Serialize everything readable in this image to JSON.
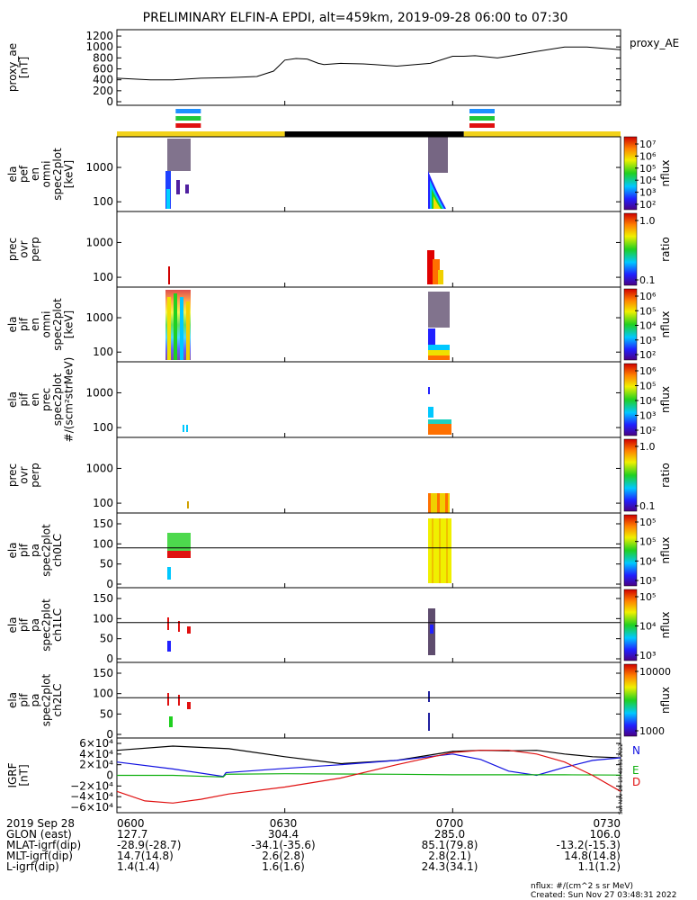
{
  "title": "PRELIMINARY ELFIN-A EPDI, alt=459km, 2019-09-28 06:00 to 07:30",
  "colors": {
    "yellow_bar": "#f2d21a",
    "black_bar": "#000000",
    "blue_bar": "#1e90ff",
    "green_bar": "#22c83a",
    "red_bar": "#e01010",
    "bfield_total": "#000000",
    "bfield_n": "#1010e0",
    "bfield_e": "#10b010",
    "bfield_d": "#e01010"
  },
  "chart_data": {
    "type": "line",
    "x_ticks": [
      "0600",
      "0630",
      "0700",
      "0730"
    ],
    "x_minutes": [
      0,
      30,
      60,
      90
    ],
    "science_zones": [
      {
        "start": 10.5,
        "end": 15.0,
        "color_row": [
          "blue",
          "green",
          "red"
        ]
      },
      {
        "start": 63.0,
        "end": 67.5,
        "color_row": [
          "blue",
          "green",
          "red"
        ]
      }
    ],
    "orbit_bar": [
      {
        "start": 0,
        "end": 30,
        "color": "yellow"
      },
      {
        "start": 30,
        "end": 62,
        "color": "black"
      },
      {
        "start": 62,
        "end": 90,
        "color": "yellow"
      }
    ],
    "panels": [
      {
        "label_lines": [
          "proxy_ae",
          "[nT]"
        ],
        "right_label": "proxy_AE",
        "yticks": [
          "1200",
          "1000",
          "800",
          "600",
          "400",
          "200",
          "0"
        ],
        "ylim": [
          0,
          1250
        ],
        "series": [
          {
            "name": "proxy_AE",
            "x": [
              0,
              4,
              6,
              10,
              15,
              20,
              25,
              28,
              30,
              32,
              34,
              36,
              37,
              40,
              44,
              46,
              50,
              56,
              60,
              62,
              64,
              66,
              68,
              70,
              75,
              80,
              84,
              90
            ],
            "y": [
              430,
              410,
              400,
              400,
              430,
              440,
              460,
              560,
              760,
              790,
              780,
              700,
              680,
              700,
              690,
              680,
              650,
              700,
              830,
              830,
              840,
              820,
              800,
              830,
              920,
              1000,
              1000,
              950
            ]
          }
        ]
      },
      {
        "label_lines": [
          "ela",
          "pef",
          "en",
          "omni",
          "spec2plot",
          "[keV]"
        ],
        "yticks": [
          "1000",
          "100"
        ],
        "colorbar": {
          "label": "nflux",
          "ticks": [
            "10⁷",
            "10⁶",
            "10⁵",
            "10⁴",
            "10³",
            "10²"
          ]
        }
      },
      {
        "label_lines": [
          "prec",
          "ovr",
          "perp"
        ],
        "yticks": [
          "1000",
          "100"
        ],
        "colorbar": {
          "label": "ratio",
          "ticks": [
            "1.0",
            "0.1"
          ]
        }
      },
      {
        "label_lines": [
          "ela",
          "pif",
          "en",
          "omni",
          "spec2plot",
          "[keV]"
        ],
        "yticks": [
          "1000",
          "100"
        ],
        "colorbar": {
          "label": "nflux",
          "ticks": [
            "10⁶",
            "10⁵",
            "10⁴",
            "10³",
            "10²"
          ]
        }
      },
      {
        "label_lines": [
          "ela",
          "pif",
          "en",
          "prec",
          "spec2plot",
          "#/(scm²strMeV)"
        ],
        "yticks": [
          "1000",
          "100"
        ],
        "colorbar": {
          "label": "nflux",
          "ticks": [
            "10⁶",
            "10⁵",
            "10⁴",
            "10³",
            "10²"
          ]
        }
      },
      {
        "label_lines": [
          "prec",
          "ovr",
          "perp"
        ],
        "yticks": [
          "1000",
          "100"
        ],
        "colorbar": {
          "label": "ratio",
          "ticks": [
            "1.0",
            "0.1"
          ]
        }
      },
      {
        "label_lines": [
          "ela",
          "pif",
          "pa",
          "spec2plot",
          "ch0LC"
        ],
        "yticks": [
          "150",
          "100",
          "50",
          "0"
        ],
        "colorbar": {
          "label": "nflux",
          "ticks": [
            "10⁵",
            "10⁵",
            "10⁴",
            "10³"
          ]
        }
      },
      {
        "label_lines": [
          "ela",
          "pif",
          "pa",
          "spec2plot",
          "ch1LC"
        ],
        "yticks": [
          "150",
          "100",
          "50",
          "0"
        ],
        "colorbar": {
          "label": "nflux",
          "ticks": [
            "10⁵",
            "10⁴",
            "10³"
          ]
        }
      },
      {
        "label_lines": [
          "ela",
          "pif",
          "pa",
          "spec2plot",
          "ch2LC"
        ],
        "yticks": [
          "150",
          "100",
          "50",
          "0"
        ],
        "colorbar": {
          "label": "nflux",
          "ticks": [
            "10000",
            "1000"
          ]
        }
      },
      {
        "label_lines": [
          "IGRF",
          "[nT]"
        ],
        "yticks": [
          "6×10⁴",
          "4×10⁴",
          "2×10⁴",
          "0",
          "−2×10⁴",
          "−4×10⁴",
          "−6×10⁴"
        ],
        "ylim": [
          -65000,
          65000
        ],
        "legend": [
          "N",
          "E",
          "D"
        ],
        "series": [
          {
            "key": "total",
            "x": [
              0,
              10,
              20,
              30,
              40,
              50,
              60,
              65,
              70,
              75,
              80,
              85,
              90
            ],
            "y": [
              47000,
              55000,
              50000,
              35000,
              22000,
              28000,
              45000,
              47000,
              46000,
              47000,
              40000,
              35000,
              33000
            ]
          },
          {
            "key": "n",
            "x": [
              0,
              10,
              19,
              19.5,
              30,
              40,
              50,
              60,
              65,
              70,
              75,
              80,
              85,
              90
            ],
            "y": [
              25000,
              12000,
              -2000,
              5000,
              13000,
              20000,
              28000,
              40000,
              30000,
              8000,
              0,
              15000,
              28000,
              33000
            ]
          },
          {
            "key": "e",
            "x": [
              0,
              10,
              19,
              19.5,
              30,
              40,
              50,
              60,
              70,
              80,
              90
            ],
            "y": [
              0,
              0,
              -3000,
              2000,
              3000,
              2500,
              2000,
              1000,
              1000,
              1000,
              500
            ]
          },
          {
            "key": "d",
            "x": [
              0,
              5,
              10,
              15,
              20,
              30,
              40,
              50,
              60,
              65,
              70,
              75,
              80,
              85,
              90
            ],
            "y": [
              -30000,
              -48000,
              -52000,
              -45000,
              -35000,
              -22000,
              -5000,
              20000,
              43000,
              47000,
              47000,
              40000,
              25000,
              0,
              -30000
            ]
          }
        ]
      }
    ]
  },
  "footer": {
    "rows": [
      {
        "label": "2019 Sep 28",
        "values": [
          "0600",
          "0630",
          "0700",
          "0730"
        ]
      },
      {
        "label": "GLON (east)",
        "values": [
          "127.7",
          "304.4",
          "285.0",
          "106.0"
        ]
      },
      {
        "label": "MLAT-igrf(dip)",
        "values": [
          "-28.9(-28.7)",
          "-34.1(-35.6)",
          "85.1(79.8)",
          "-13.2(-15.3)"
        ]
      },
      {
        "label": "MLT-igrf(dip)",
        "values": [
          "14.7(14.8)",
          "2.6(2.8)",
          "2.8(2.1)",
          "14.8(14.8)"
        ]
      },
      {
        "label": "L-igrf(dip)",
        "values": [
          "1.4(1.4)",
          "1.6(1.6)",
          "24.3(34.1)",
          "1.1(1.2)"
        ]
      }
    ],
    "nflux_note": "nflux: #/(cm^2 s sr MeV)",
    "created": "Created: Sun Nov 27 03:48:31 2022",
    "side_stamp": "Sat Nov 26 19:48:31 2022"
  }
}
